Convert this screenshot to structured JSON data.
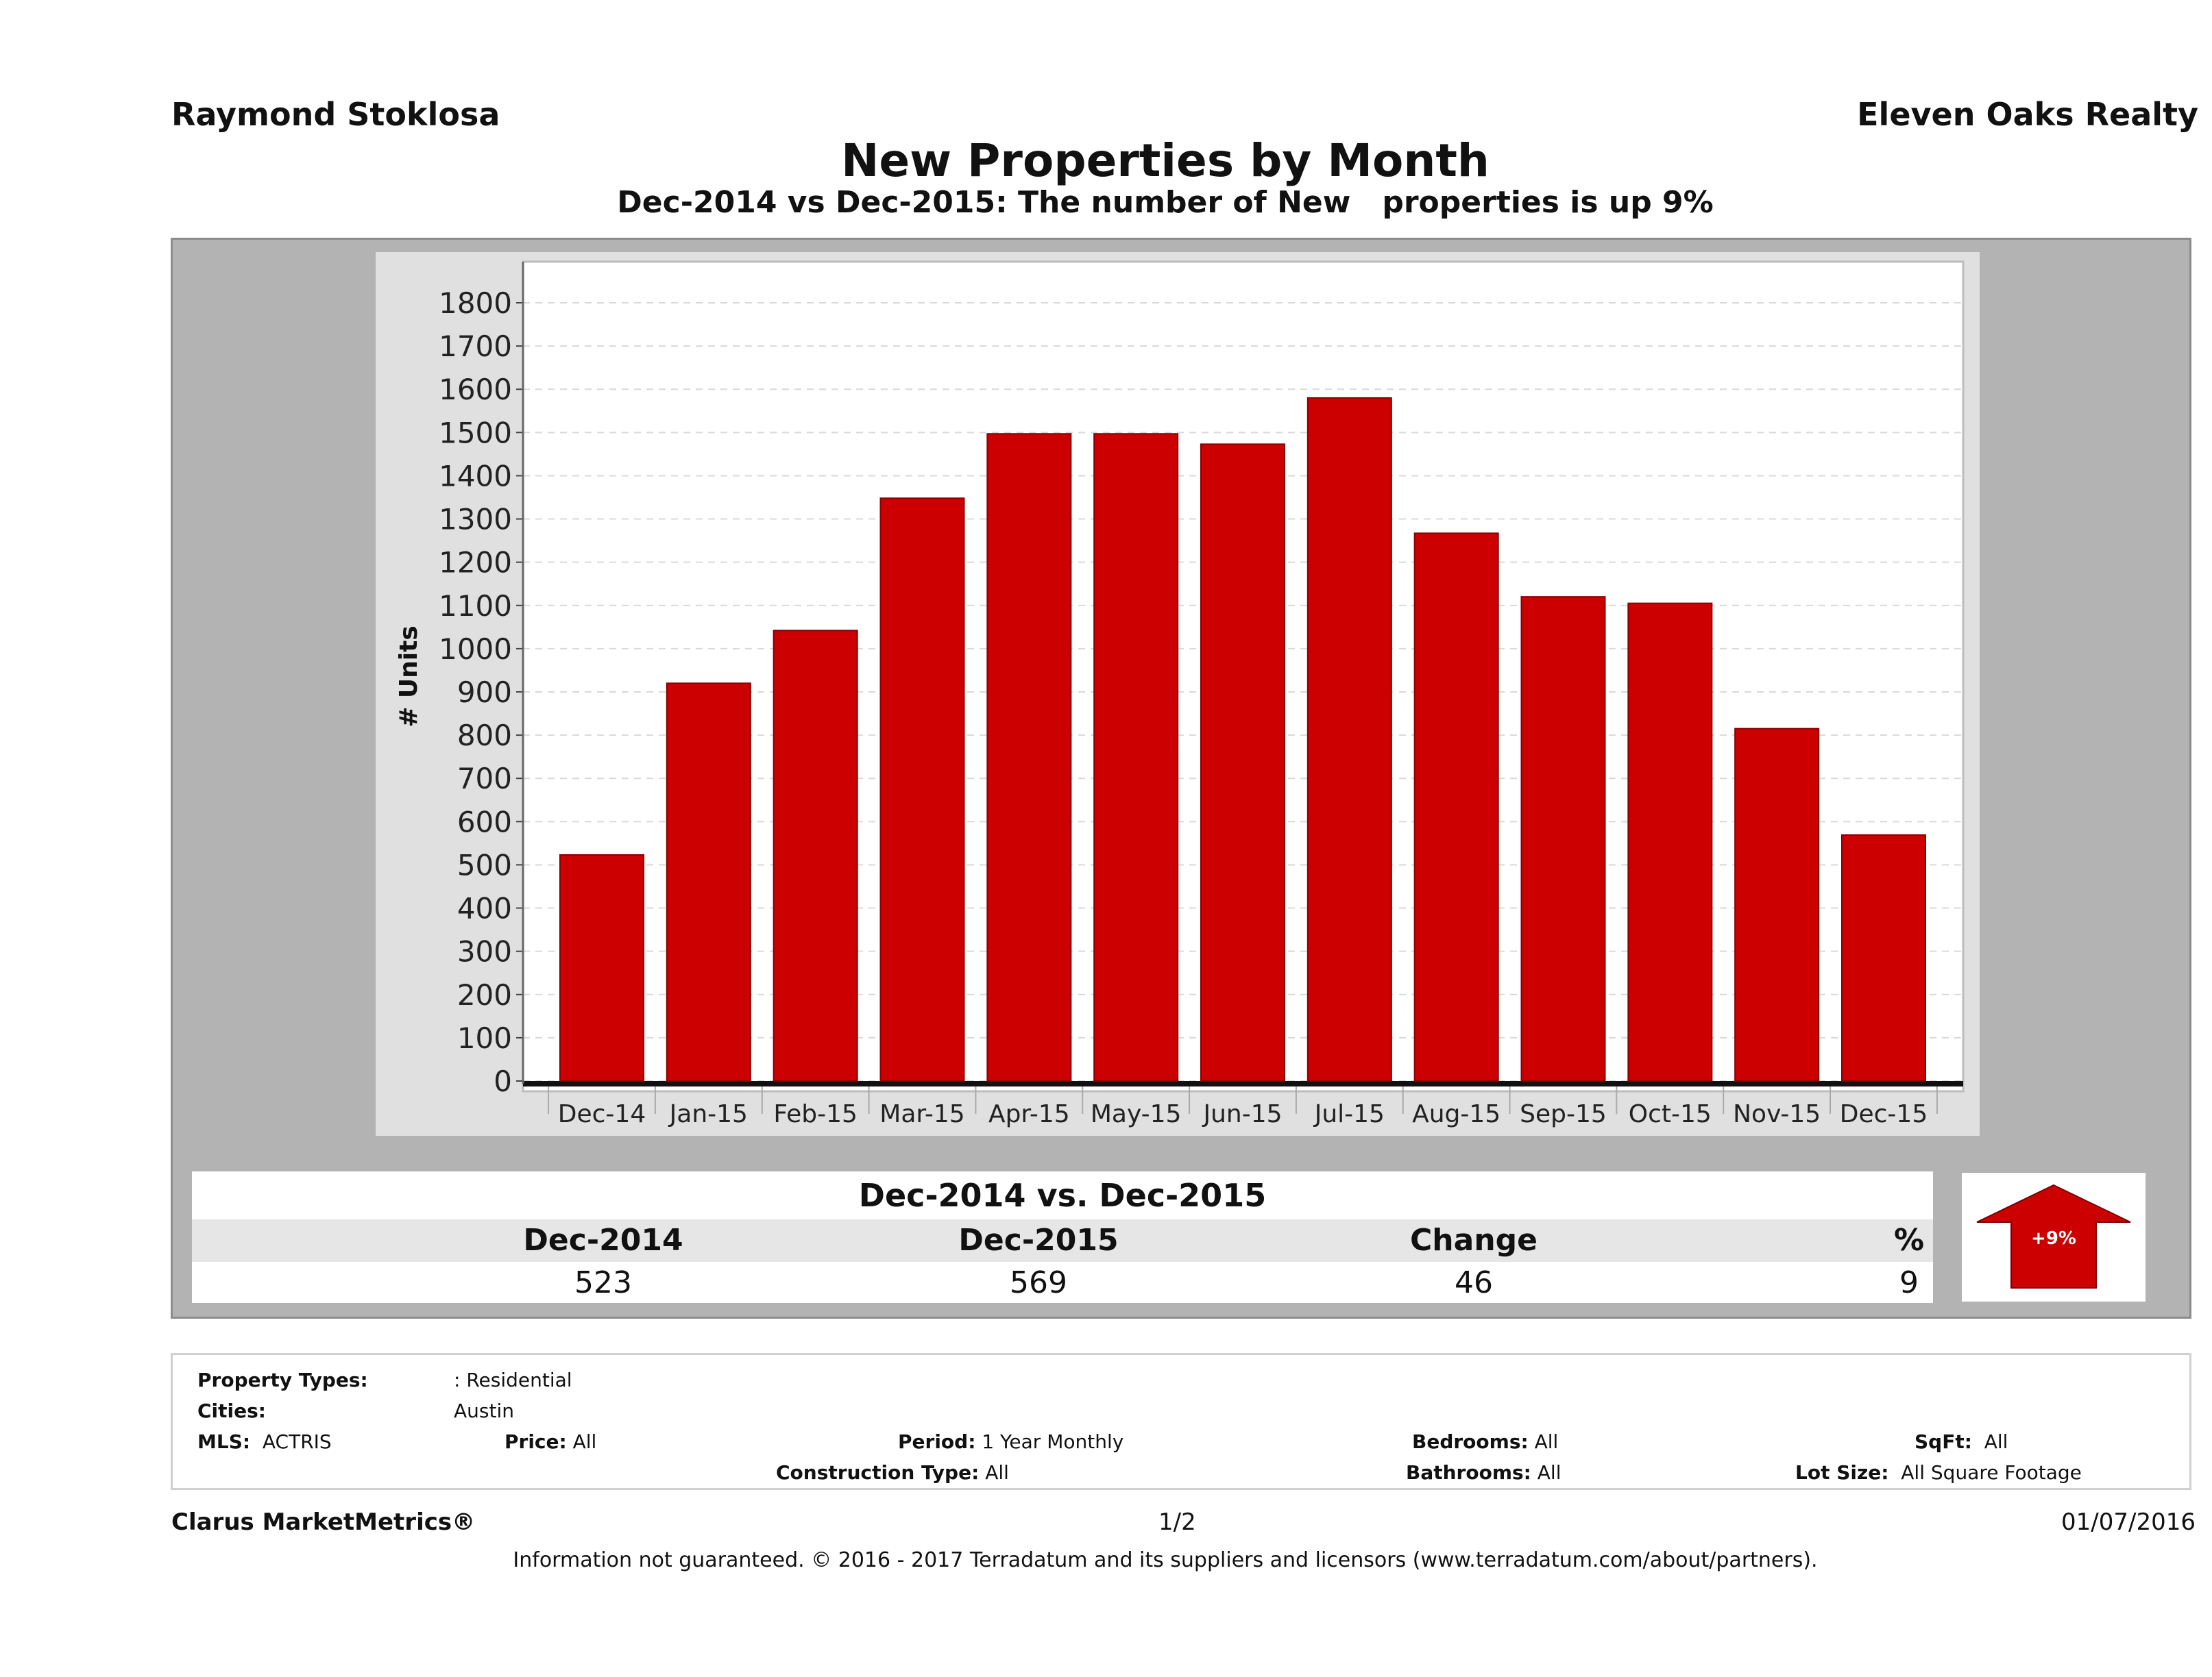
{
  "header": {
    "agent": "Raymond Stoklosa",
    "company": "Eleven Oaks Realty",
    "title": "New Properties by Month",
    "subtitle": "Dec-2014 vs Dec-2015: The number of New   properties is up 9%"
  },
  "chart_data": {
    "type": "bar",
    "title": "New Properties by Month",
    "xlabel": "",
    "ylabel": "# Units",
    "categories": [
      "Dec-14",
      "Jan-15",
      "Feb-15",
      "Mar-15",
      "Apr-15",
      "May-15",
      "Jun-15",
      "Jul-15",
      "Aug-15",
      "Sep-15",
      "Oct-15",
      "Nov-15",
      "Dec-15"
    ],
    "values": [
      523,
      920,
      1042,
      1348,
      1497,
      1497,
      1473,
      1580,
      1267,
      1120,
      1105,
      815,
      569
    ],
    "ylim": [
      0,
      1800
    ],
    "yticks": [
      0,
      100,
      200,
      300,
      400,
      500,
      600,
      700,
      800,
      900,
      1000,
      1100,
      1200,
      1300,
      1400,
      1500,
      1600,
      1700,
      1800
    ],
    "grid": true,
    "colors": {
      "bar": "#cc0000",
      "plot_bg": "#ffffff",
      "panel_bg": "#e0e0e0"
    }
  },
  "summary": {
    "title": "Dec-2014 vs. Dec-2015",
    "headers": [
      "Dec-2014",
      "Dec-2015",
      "Change",
      "%"
    ],
    "values": [
      "523",
      "569",
      "46",
      "9"
    ],
    "badge": "+9%",
    "arrow_color": "#cc0000"
  },
  "criteria": {
    "property_types_label": "Property Types:",
    "property_types_value": ": Residential",
    "cities_label": "Cities:",
    "cities_value": "Austin",
    "mls_label": "MLS:",
    "mls_value": "ACTRIS",
    "price_label": "Price:",
    "price_value": "All",
    "period_label": "Period:",
    "period_value": "1 Year Monthly",
    "construction_label": "Construction Type:",
    "construction_value": "All",
    "bedrooms_label": "Bedrooms:",
    "bedrooms_value": "All",
    "bathrooms_label": "Bathrooms:",
    "bathrooms_value": "All",
    "sqft_label": "SqFt:",
    "sqft_value": "All",
    "lot_label": "Lot Size:",
    "lot_value": "All Square Footage"
  },
  "footer": {
    "brand": "Clarus MarketMetrics®",
    "page": "1/2",
    "date": "01/07/2016",
    "disclaimer": "Information not guaranteed. © 2016 - 2017 Terradatum and its suppliers and licensors (www.terradatum.com/about/partners)."
  }
}
